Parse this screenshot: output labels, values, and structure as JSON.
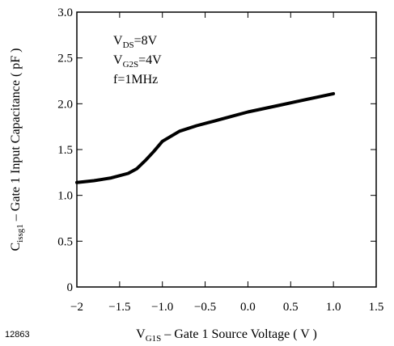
{
  "chart_data": {
    "type": "line",
    "xlabel": {
      "main": "V",
      "sub": "G1S",
      "rest": " – Gate 1 Source Voltage ( V )"
    },
    "ylabel": {
      "main": "C",
      "sub": "issg1",
      "rest": " – Gate 1 Input Capacitance ( pF )"
    },
    "xlim": [
      -2,
      1.5
    ],
    "ylim": [
      0,
      3.0
    ],
    "x_ticks": [
      -2,
      -1.5,
      -1.0,
      -0.5,
      0.0,
      0.5,
      1.0,
      1.5
    ],
    "x_tick_labels": [
      "−2",
      "−1.5",
      "−1.0",
      "−0.5",
      "0.0",
      "0.5",
      "1.0",
      "1.5"
    ],
    "y_ticks": [
      0,
      0.5,
      1.0,
      1.5,
      2.0,
      2.5,
      3.0
    ],
    "y_tick_labels": [
      "0",
      "0.5",
      "1.0",
      "1.5",
      "2.0",
      "2.5",
      "3.0"
    ],
    "grid": false,
    "series": [
      {
        "x": [
          -2.0,
          -1.8,
          -1.6,
          -1.4,
          -1.3,
          -1.2,
          -1.1,
          -1.0,
          -0.8,
          -0.6,
          -0.4,
          -0.2,
          0.0,
          0.2,
          0.4,
          0.6,
          0.8,
          1.0
        ],
        "y": [
          1.14,
          1.16,
          1.19,
          1.24,
          1.29,
          1.38,
          1.48,
          1.59,
          1.7,
          1.76,
          1.81,
          1.86,
          1.91,
          1.95,
          1.99,
          2.03,
          2.07,
          2.11
        ]
      }
    ],
    "annotation": [
      {
        "main": "V",
        "sub": "DS",
        "rest": "=8V"
      },
      {
        "main": "V",
        "sub": "G2S",
        "rest": "=4V"
      },
      {
        "main": "f=1MHz",
        "sub": "",
        "rest": ""
      }
    ]
  },
  "figure_id": "12863"
}
